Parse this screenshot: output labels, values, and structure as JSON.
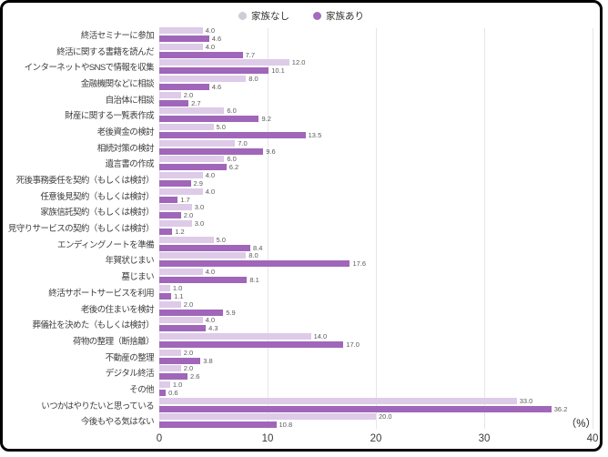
{
  "legend": {
    "items": [
      {
        "label": "家族なし",
        "color": "#d2cbd6"
      },
      {
        "label": "家族あり",
        "color": "#a46cbc"
      }
    ]
  },
  "chart_data": {
    "type": "bar",
    "orientation": "horizontal",
    "title": "",
    "xlabel": "",
    "ylabel": "",
    "unit_label": "（%）",
    "xlim": [
      0,
      40
    ],
    "x_ticks": [
      0,
      10,
      20,
      30,
      40
    ],
    "grid": "vertical",
    "legend_position": "top-center",
    "categories": [
      "終活セミナーに参加",
      "終活に関する書籍を読んだ",
      "インターネットやSNSで情報を収集",
      "金融機関などに相談",
      "自治体に相談",
      "財産に関する一覧表作成",
      "老後資金の検討",
      "相続対策の検討",
      "遺言書の作成",
      "死後事務委任を契約（もしくは検討）",
      "任意後見契約（もしくは検討）",
      "家族信託契約（もしくは検討）",
      "見守りサービスの契約（もしくは検討）",
      "エンディングノートを準備",
      "年賀状じまい",
      "墓じまい",
      "終活サポートサービスを利用",
      "老後の住まいを検討",
      "葬儀社を決めた（もしくは検討）",
      "荷物の整理（断捨離）",
      "不動産の整理",
      "デジタル終活",
      "その他",
      "いつかはやりたいと思っている",
      "今後もやる気はない"
    ],
    "series": [
      {
        "name": "家族なし",
        "color": "#ddcbe8",
        "values": [
          4.0,
          4.0,
          12.0,
          8.0,
          2.0,
          6.0,
          5.0,
          7.0,
          6.0,
          4.0,
          4.0,
          3.0,
          3.0,
          5.0,
          8.0,
          4.0,
          1.0,
          2.0,
          4.0,
          14.0,
          2.0,
          2.0,
          1.0,
          33.0,
          20.0
        ]
      },
      {
        "name": "家族あり",
        "color": "#a066b9",
        "values": [
          4.6,
          7.7,
          10.1,
          4.6,
          2.7,
          9.2,
          13.5,
          9.6,
          6.2,
          2.9,
          1.7,
          2.0,
          1.2,
          8.4,
          17.6,
          8.1,
          1.1,
          5.9,
          4.3,
          17.0,
          3.8,
          2.6,
          0.6,
          36.2,
          10.8
        ]
      }
    ]
  }
}
